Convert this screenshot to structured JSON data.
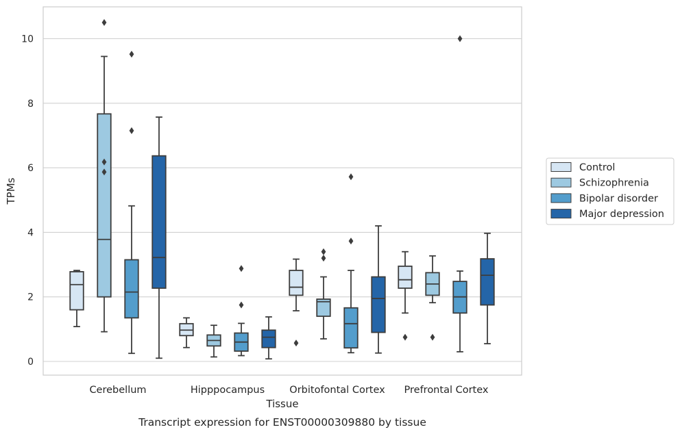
{
  "chart_data": {
    "type": "box",
    "caption": "Transcript expression for ENST00000309880 by tissue",
    "xlabel": "Tissue",
    "ylabel": "TPMs",
    "ylim": [
      -0.4,
      11.0
    ],
    "yticks": [
      0,
      2,
      4,
      6,
      8,
      10
    ],
    "grid": "horizontal",
    "legend_position": "outside-right",
    "categories": [
      "Cerebellum",
      "Hipppocampus",
      "Orbitofontal Cortex",
      "Prefrontal Cortex"
    ],
    "series": [
      {
        "name": "Control",
        "color": "#d6e6f4",
        "boxes": [
          {
            "whisker_low": 1.08,
            "q1": 1.6,
            "median": 2.38,
            "q3": 2.78,
            "whisker_high": 2.82,
            "outliers": []
          },
          {
            "whisker_low": 0.43,
            "q1": 0.8,
            "median": 0.97,
            "q3": 1.17,
            "whisker_high": 1.35,
            "outliers": []
          },
          {
            "whisker_low": 1.57,
            "q1": 2.05,
            "median": 2.3,
            "q3": 2.82,
            "whisker_high": 3.17,
            "outliers": [
              0.57
            ]
          },
          {
            "whisker_low": 1.5,
            "q1": 2.27,
            "median": 2.53,
            "q3": 2.95,
            "whisker_high": 3.4,
            "outliers": [
              0.75
            ]
          }
        ]
      },
      {
        "name": "Schizophrenia",
        "color": "#9dc9e1",
        "boxes": [
          {
            "whisker_low": 0.92,
            "q1": 2.0,
            "median": 3.78,
            "q3": 7.67,
            "whisker_high": 9.45,
            "outliers": [
              10.5,
              6.18,
              5.87
            ]
          },
          {
            "whisker_low": 0.14,
            "q1": 0.48,
            "median": 0.65,
            "q3": 0.82,
            "whisker_high": 1.12,
            "outliers": []
          },
          {
            "whisker_low": 0.7,
            "q1": 1.4,
            "median": 1.85,
            "q3": 1.93,
            "whisker_high": 2.62,
            "outliers": [
              3.4,
              3.2
            ]
          },
          {
            "whisker_low": 1.82,
            "q1": 2.05,
            "median": 2.4,
            "q3": 2.75,
            "whisker_high": 3.27,
            "outliers": [
              0.75
            ]
          }
        ]
      },
      {
        "name": "Bipolar disorder",
        "color": "#539dcc",
        "boxes": [
          {
            "whisker_low": 0.25,
            "q1": 1.35,
            "median": 2.15,
            "q3": 3.15,
            "whisker_high": 4.82,
            "outliers": [
              9.52,
              7.15
            ]
          },
          {
            "whisker_low": 0.18,
            "q1": 0.32,
            "median": 0.6,
            "q3": 0.88,
            "whisker_high": 1.18,
            "outliers": [
              2.88,
              1.75
            ]
          },
          {
            "whisker_low": 0.27,
            "q1": 0.42,
            "median": 1.17,
            "q3": 1.66,
            "whisker_high": 2.82,
            "outliers": [
              5.72,
              3.73
            ]
          },
          {
            "whisker_low": 0.3,
            "q1": 1.5,
            "median": 2.0,
            "q3": 2.48,
            "whisker_high": 2.8,
            "outliers": [
              10.0
            ]
          }
        ]
      },
      {
        "name": "Major depression",
        "color": "#2465a8",
        "boxes": [
          {
            "whisker_low": 0.1,
            "q1": 2.27,
            "median": 3.22,
            "q3": 6.37,
            "whisker_high": 7.57,
            "outliers": []
          },
          {
            "whisker_low": 0.08,
            "q1": 0.43,
            "median": 0.75,
            "q3": 0.97,
            "whisker_high": 1.38,
            "outliers": []
          },
          {
            "whisker_low": 0.26,
            "q1": 0.9,
            "median": 1.95,
            "q3": 2.62,
            "whisker_high": 4.2,
            "outliers": []
          },
          {
            "whisker_low": 0.55,
            "q1": 1.75,
            "median": 2.67,
            "q3": 3.18,
            "whisker_high": 3.97,
            "outliers": []
          }
        ]
      }
    ]
  }
}
